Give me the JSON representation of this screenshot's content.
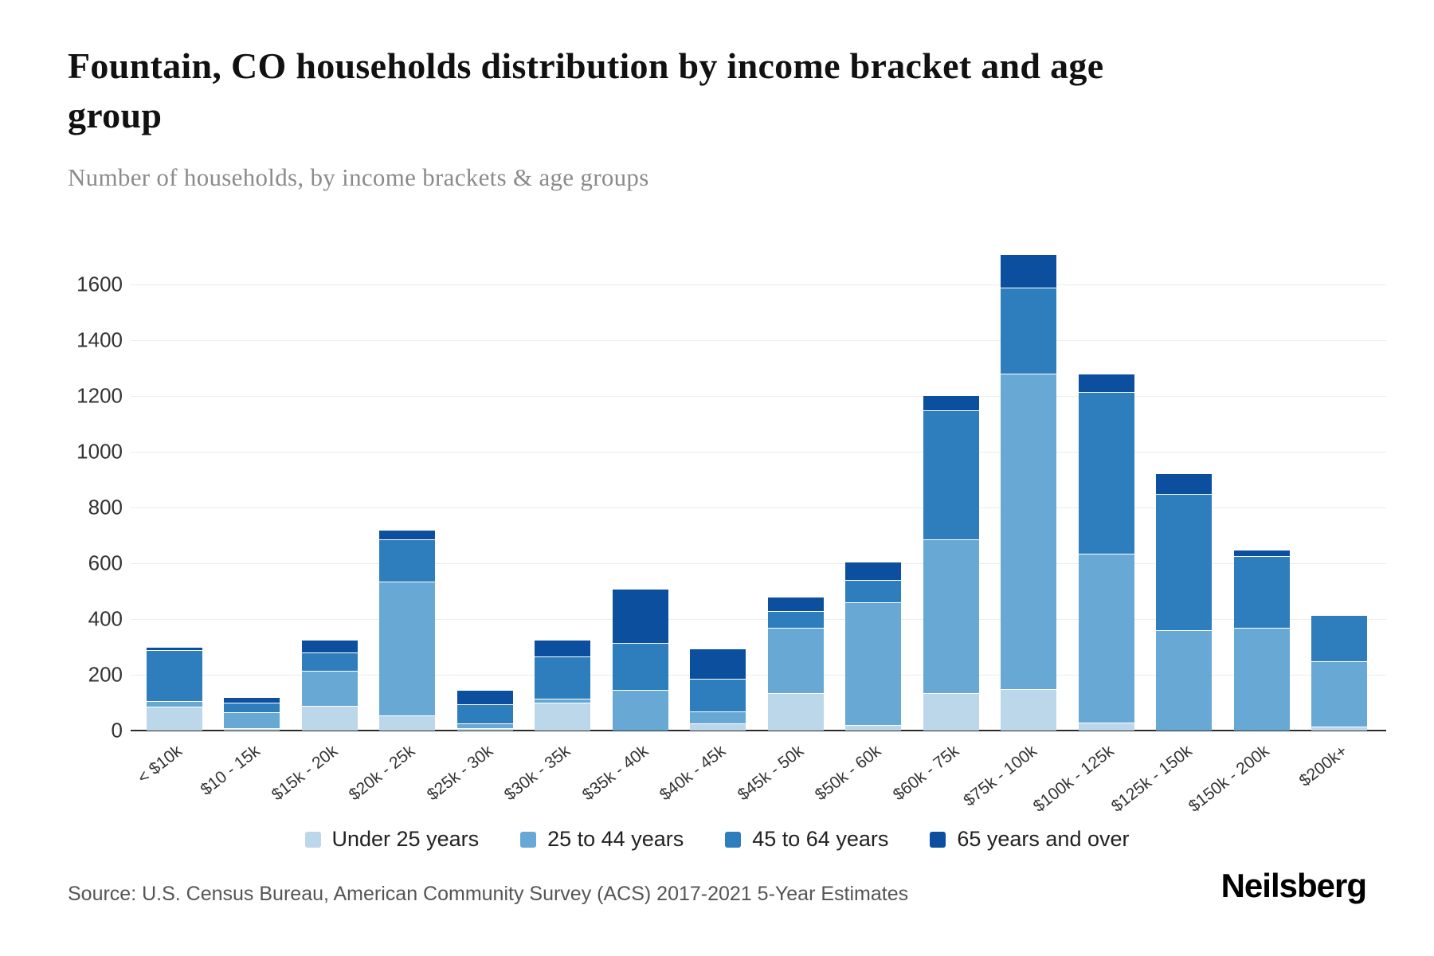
{
  "header": {
    "title": "Fountain, CO households distribution by income bracket and age group",
    "subtitle": "Number of households, by income brackets & age groups"
  },
  "chart_data": {
    "type": "bar",
    "stacked": true,
    "title": "Fountain, CO households distribution by income bracket and age group",
    "xlabel": "",
    "ylabel": "Number of households",
    "categories": [
      "< $10k",
      "$10 - 15k",
      "$15k - 20k",
      "$20k - 25k",
      "$25k - 30k",
      "$30k - 35k",
      "$35k - 40k",
      "$40k - 45k",
      "$45k - 50k",
      "$50k - 60k",
      "$60k - 75k",
      "$75k - 100k",
      "$100k - 125k",
      "$125k - 150k",
      "$150k - 200k",
      "$200k+"
    ],
    "series": [
      {
        "name": "Under 25 years",
        "color": "#bdd7ea",
        "values": [
          85,
          10,
          90,
          55,
          10,
          100,
          0,
          25,
          135,
          20,
          135,
          150,
          30,
          0,
          0,
          15
        ]
      },
      {
        "name": "25 to 44 years",
        "color": "#67a9d4",
        "values": [
          20,
          55,
          125,
          480,
          15,
          15,
          145,
          45,
          235,
          440,
          550,
          1130,
          605,
          360,
          370,
          235
        ]
      },
      {
        "name": "45 to 64 years",
        "color": "#2e7ebd",
        "values": [
          185,
          35,
          65,
          150,
          70,
          150,
          170,
          115,
          60,
          80,
          465,
          310,
          580,
          490,
          255,
          165
        ]
      },
      {
        "name": "65 years and over",
        "color": "#0b4f9e",
        "values": [
          10,
          20,
          45,
          35,
          50,
          60,
          195,
          110,
          50,
          65,
          55,
          120,
          65,
          75,
          25,
          0
        ]
      }
    ],
    "ylim": [
      0,
      1750
    ],
    "yticks": [
      0,
      200,
      400,
      600,
      800,
      1000,
      1200,
      1400,
      1600
    ],
    "grid": true,
    "legend_position": "bottom"
  },
  "footer": {
    "source": "Source: U.S. Census Bureau, American Community Survey (ACS) 2017-2021 5-Year Estimates",
    "brand": "Neilsberg"
  }
}
